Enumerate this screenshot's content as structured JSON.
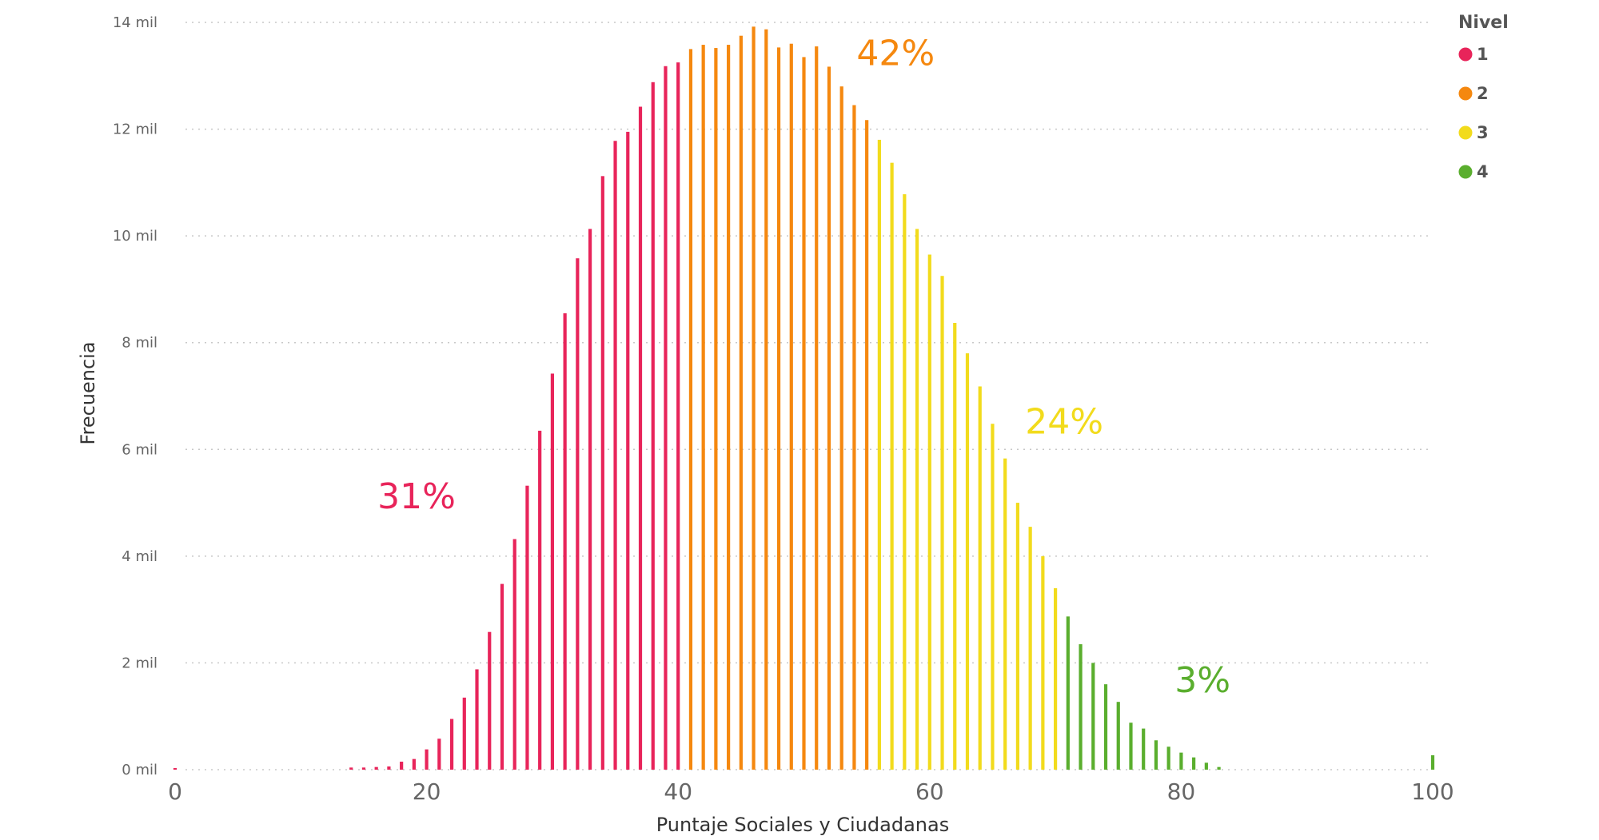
{
  "chart_data": {
    "type": "bar",
    "xlabel": "Puntaje Sociales y Ciudadanas",
    "ylabel": "Frecuencia",
    "xlim": [
      0,
      100
    ],
    "ylim": [
      0,
      14000
    ],
    "x_ticks": [
      {
        "value": 0,
        "label": "0"
      },
      {
        "value": 20,
        "label": "20"
      },
      {
        "value": 40,
        "label": "40"
      },
      {
        "value": 60,
        "label": "60"
      },
      {
        "value": 80,
        "label": "80"
      },
      {
        "value": 100,
        "label": "100"
      }
    ],
    "y_ticks": [
      {
        "value": 0,
        "label": "0 mil"
      },
      {
        "value": 2000,
        "label": "2 mil"
      },
      {
        "value": 4000,
        "label": "4 mil"
      },
      {
        "value": 6000,
        "label": "6 mil"
      },
      {
        "value": 8000,
        "label": "8 mil"
      },
      {
        "value": 10000,
        "label": "10 mil"
      },
      {
        "value": 12000,
        "label": "12 mil"
      },
      {
        "value": 14000,
        "label": "14 mil"
      }
    ],
    "grid": true,
    "legend": {
      "title": "Nivel",
      "position": "top-right",
      "entries": [
        {
          "label": "1",
          "color": "#e8245a"
        },
        {
          "label": "2",
          "color": "#f5880f"
        },
        {
          "label": "3",
          "color": "#f2db1c"
        },
        {
          "label": "4",
          "color": "#5aae2e"
        }
      ]
    },
    "series": [
      {
        "level": "1",
        "color": "#e8245a",
        "x": [
          0,
          14,
          15,
          16,
          17,
          18,
          19,
          20,
          21,
          22,
          23,
          24,
          25,
          26,
          27,
          28,
          29,
          30,
          31,
          32,
          33,
          34,
          35,
          36,
          37,
          38,
          39,
          40
        ],
        "values": [
          30,
          40,
          40,
          50,
          60,
          150,
          200,
          380,
          580,
          950,
          1350,
          1880,
          2580,
          3480,
          4320,
          5320,
          6350,
          7420,
          8550,
          9580,
          10130,
          11120,
          11780,
          11950,
          12420,
          12880,
          13180,
          13250
        ]
      },
      {
        "level": "2",
        "color": "#f5880f",
        "x": [
          41,
          42,
          43,
          44,
          45,
          46,
          47,
          48,
          49,
          50,
          51,
          52,
          53,
          54,
          55
        ],
        "values": [
          13500,
          13580,
          13520,
          13580,
          13750,
          13920,
          13870,
          13530,
          13600,
          13350,
          13550,
          13170,
          12800,
          12450,
          12170
        ]
      },
      {
        "level": "3",
        "color": "#f2db1c",
        "x": [
          56,
          57,
          58,
          59,
          60,
          61,
          62,
          63,
          64,
          65,
          66,
          67,
          68,
          69,
          70
        ],
        "values": [
          11800,
          11370,
          10780,
          10130,
          9650,
          9250,
          8370,
          7800,
          7180,
          6480,
          5830,
          5000,
          4550,
          4000,
          3400
        ]
      },
      {
        "level": "4",
        "color": "#5aae2e",
        "x": [
          71,
          72,
          73,
          74,
          75,
          76,
          77,
          78,
          79,
          80,
          81,
          82,
          83,
          100
        ],
        "values": [
          2870,
          2350,
          2000,
          1600,
          1270,
          880,
          770,
          550,
          430,
          320,
          230,
          130,
          50,
          270
        ]
      }
    ],
    "annotations": [
      {
        "text": "31%",
        "x": 19.2,
        "y": 4900,
        "color": "#e8245a"
      },
      {
        "text": "42%",
        "x": 57.3,
        "y": 13200,
        "color": "#f5880f"
      },
      {
        "text": "24%",
        "x": 70.7,
        "y": 6300,
        "color": "#f2db1c"
      },
      {
        "text": "3%",
        "x": 81.7,
        "y": 1450,
        "color": "#5aae2e"
      }
    ]
  }
}
